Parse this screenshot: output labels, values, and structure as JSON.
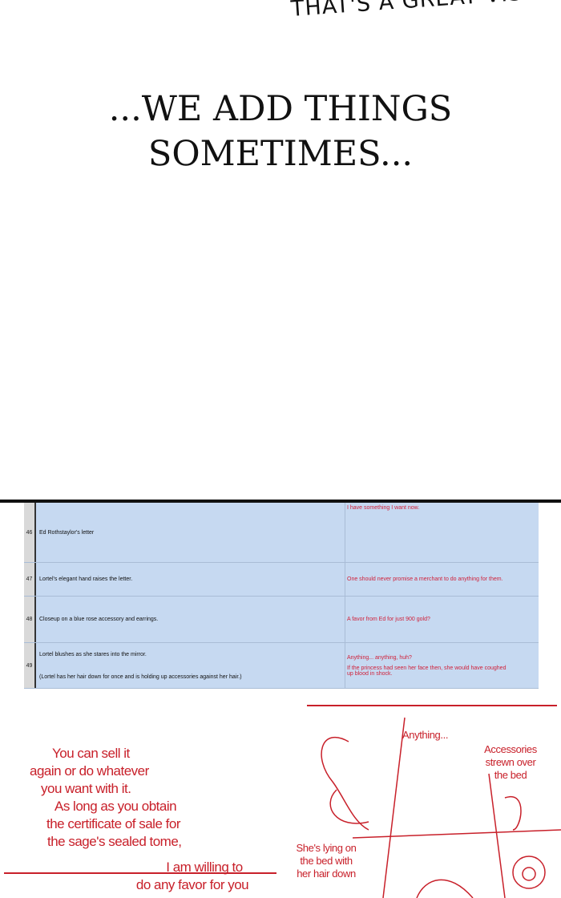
{
  "top_speech": "THAT'S A GREAT VISU",
  "narration": [
    "...WE ADD THINGS",
    "SOMETIMES..."
  ],
  "script_table": {
    "rows": [
      {
        "num": "46",
        "description": [
          "Ed Rothstaylor's letter"
        ],
        "dialogue": [
          "I have something I want now."
        ]
      },
      {
        "num": "47",
        "description": [
          "Lortel's elegant hand raises the letter."
        ],
        "dialogue": [
          "One should never promise a merchant to do anything for them."
        ]
      },
      {
        "num": "48",
        "description": [
          "Closeup on a blue rose accessory and earrings."
        ],
        "dialogue": [
          "A favor from Ed for just 900 gold?"
        ]
      },
      {
        "num": "49",
        "description": [
          "Lortel blushes as she stares into the mirror.",
          "(Lortel has her hair down for once and is holding up accessories against her hair.)"
        ],
        "dialogue": [
          "Anything... anything, huh?",
          "If the princess had seen her face then, she would have coughed up blood in shock."
        ]
      }
    ],
    "colors": {
      "cell": "#c6d9f1",
      "dialogue_text": "#d0213a"
    }
  },
  "sketch": {
    "left_text": [
      "You can sell it",
      "again or do whatever",
      "you want with it.",
      "As long as you obtain",
      "the certificate of sale for",
      "the sage's sealed tome,"
    ],
    "bottom_text": [
      "I am willing to",
      "do any favor for you"
    ],
    "anything": "Anything...",
    "accessories": [
      "Accessories",
      "strewn over",
      "the bed"
    ],
    "lying": [
      "She's lying on",
      "the bed with",
      "her hair down"
    ],
    "line_color": "#c8202a"
  }
}
